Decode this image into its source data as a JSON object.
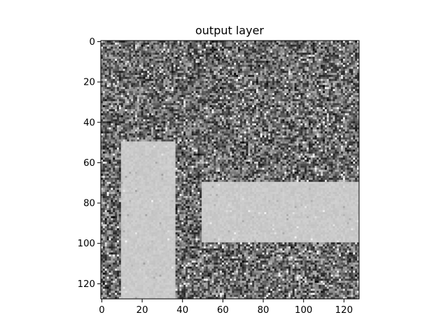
{
  "chart_data": {
    "type": "heatmap",
    "title": "output layer",
    "xlabel": "",
    "ylabel": "",
    "colormap": "gray",
    "grid": false,
    "image_shape": [
      128,
      128
    ],
    "xlim": [
      -0.5,
      127.5
    ],
    "ylim": [
      127.5,
      -0.5
    ],
    "x_ticks": [
      0,
      20,
      40,
      60,
      80,
      100,
      120
    ],
    "y_ticks": [
      0,
      20,
      40,
      60,
      80,
      100,
      120
    ],
    "x_tick_labels": [
      "0",
      "20",
      "40",
      "60",
      "80",
      "100",
      "120"
    ],
    "y_tick_labels": [
      "0",
      "20",
      "40",
      "60",
      "80",
      "100",
      "120"
    ],
    "background": {
      "description": "random noise",
      "mean_level": 0.42,
      "spread": 0.18
    },
    "regions": [
      {
        "name": "vertical-bar",
        "x_range": [
          10,
          37
        ],
        "y_range": [
          50,
          128
        ],
        "level": 0.79
      },
      {
        "name": "horizontal-bar",
        "x_range": [
          50,
          128
        ],
        "y_range": [
          70,
          100
        ],
        "level": 0.79
      }
    ]
  }
}
